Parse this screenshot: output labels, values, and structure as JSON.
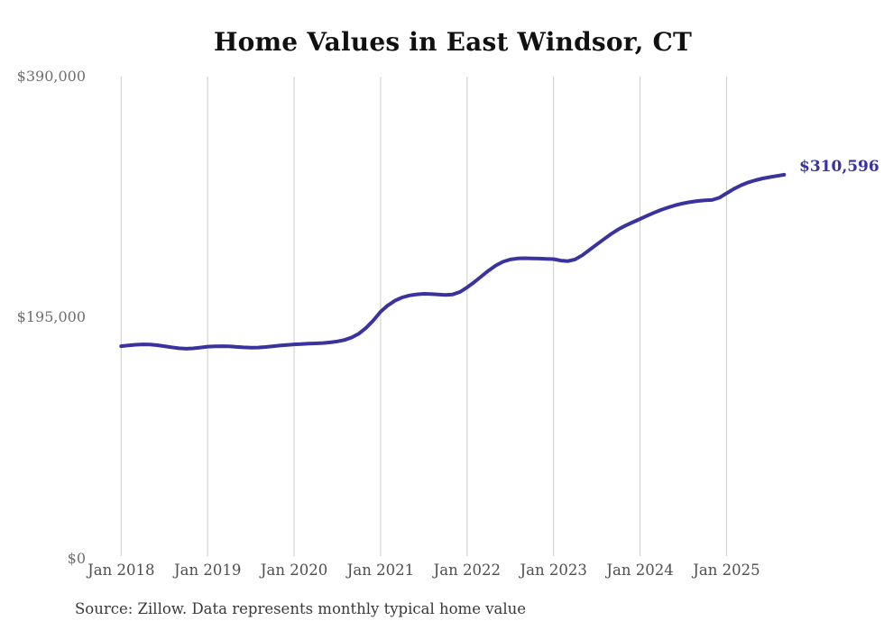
{
  "chart_data": {
    "type": "line",
    "title": "Home Values in East Windsor, CT",
    "source_note": "Source: Zillow. Data represents monthly typical home value",
    "xlabel": "",
    "ylabel": "",
    "ylim": [
      0,
      390000
    ],
    "grid": "vertical-only",
    "legend": "none",
    "y_ticks": [
      {
        "label": "$390,000",
        "value": 390000
      },
      {
        "label": "$195,000",
        "value": 195000
      },
      {
        "label": "$0",
        "value": 0
      }
    ],
    "x_ticks": [
      "Jan 2018",
      "Jan 2019",
      "Jan 2020",
      "Jan 2021",
      "Jan 2022",
      "Jan 2023",
      "Jan 2024",
      "Jan 2025"
    ],
    "end_label": "$310,596",
    "end_value": 310596,
    "series": [
      {
        "name": "Monthly typical home value",
        "start_month": "Jan 2018",
        "end_month": "Sep 2025",
        "points_per_year": 12,
        "values": [
          172000,
          172600,
          173100,
          173400,
          173300,
          172800,
          172000,
          171100,
          170300,
          169900,
          170200,
          170900,
          171600,
          171900,
          172000,
          171800,
          171400,
          171000,
          170800,
          170900,
          171300,
          171900,
          172500,
          173000,
          173400,
          173700,
          174000,
          174200,
          174500,
          175000,
          175800,
          177000,
          179000,
          182200,
          186800,
          192800,
          199800,
          204900,
          208800,
          211400,
          213000,
          213900,
          214300,
          214200,
          213700,
          213400,
          213800,
          215800,
          219500,
          223800,
          228500,
          233200,
          237300,
          240300,
          242100,
          242900,
          243100,
          243000,
          242800,
          242600,
          242400,
          241200,
          240800,
          242200,
          245500,
          249900,
          254300,
          258600,
          262800,
          266500,
          269600,
          272300,
          274800,
          277500,
          280100,
          282400,
          284400,
          286100,
          287500,
          288600,
          289400,
          289900,
          290200,
          292000,
          295600,
          299100,
          302100,
          304400,
          306200,
          307600,
          308700,
          309700,
          310596
        ]
      }
    ],
    "colors": {
      "line": "#39329f",
      "end_label": "#39329f",
      "gridline": "#cccccc",
      "y_axis_label": "#6e6e6e",
      "x_axis_label": "#4f4f4f",
      "title": "#111111",
      "source": "#3a3a3a"
    }
  }
}
